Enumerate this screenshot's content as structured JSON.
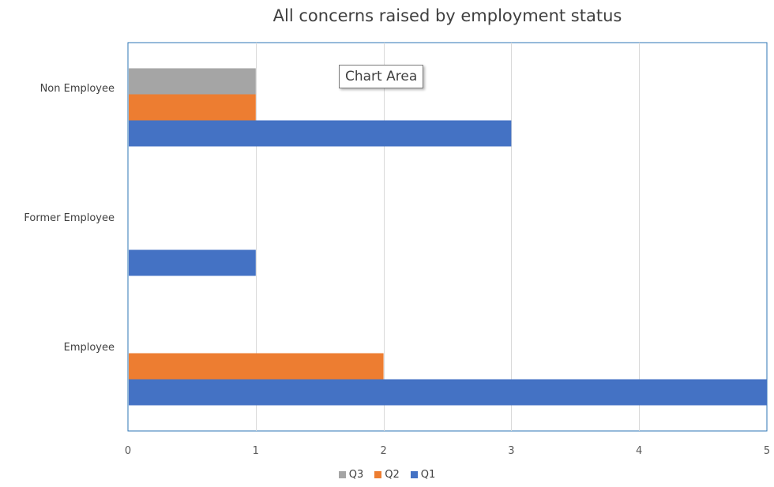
{
  "chart_data": {
    "type": "bar",
    "orientation": "horizontal",
    "title": "All concerns raised by employment status",
    "categories": [
      "Employee",
      "Former Employee",
      "Non Employee"
    ],
    "series": [
      {
        "name": "Q1",
        "color": "#4472C4",
        "values": [
          5,
          1,
          3
        ]
      },
      {
        "name": "Q2",
        "color": "#ED7D31",
        "values": [
          2,
          0,
          1
        ]
      },
      {
        "name": "Q3",
        "color": "#A5A5A5",
        "values": [
          0,
          0,
          1
        ]
      }
    ],
    "xlim": [
      0,
      5
    ],
    "xticks": [
      "0",
      "1",
      "2",
      "3",
      "4",
      "5"
    ],
    "grid": true,
    "legend_position": "bottom",
    "legend_order": [
      "Q3",
      "Q2",
      "Q1"
    ]
  },
  "tooltip": {
    "label": "Chart Area"
  }
}
